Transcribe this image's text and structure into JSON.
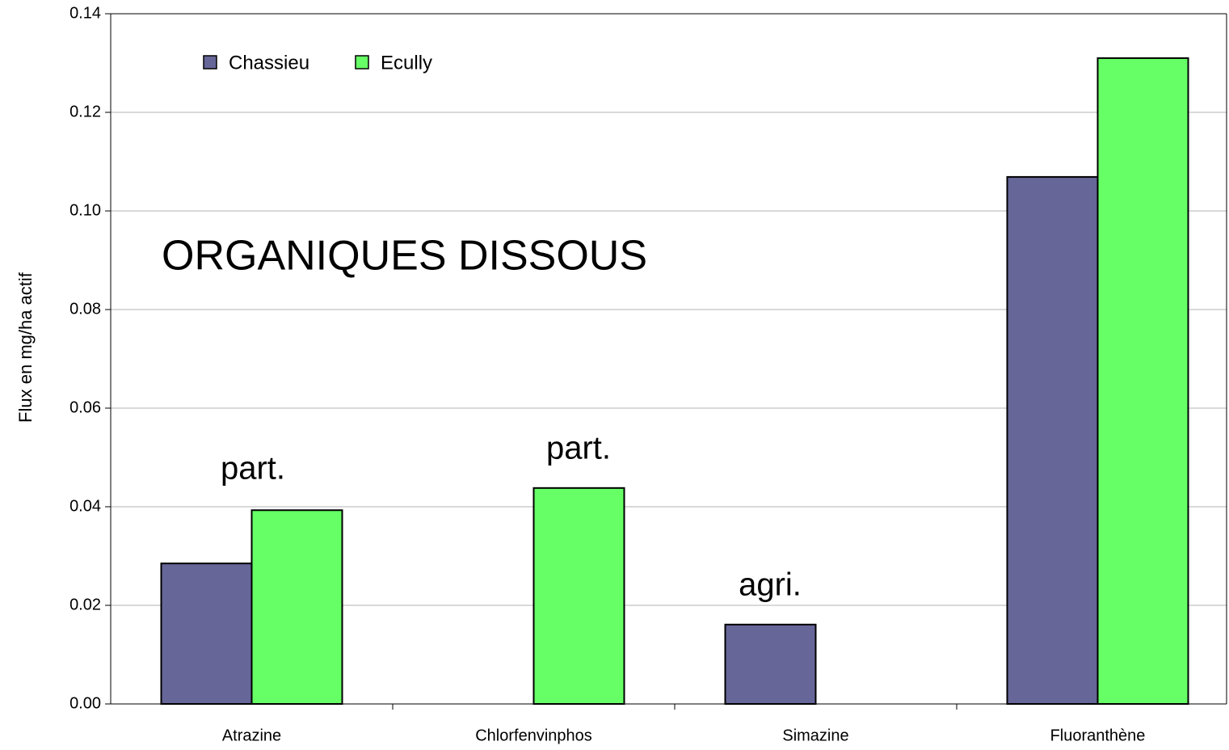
{
  "chart_data": {
    "type": "bar",
    "title": "ORGANIQUES DISSOUS",
    "y_label": "Flux en mg/ha actif",
    "categories": [
      "Atrazine",
      "Chlorfenvinphos",
      "Simazine",
      "Fluoranthène"
    ],
    "series": [
      {
        "name": "Chassieu",
        "color": "#666699",
        "values": [
          0.0285,
          null,
          0.0161,
          0.1069
        ]
      },
      {
        "name": "Ecully",
        "color": "#66ff66",
        "values": [
          0.0393,
          0.0438,
          null,
          0.131
        ]
      }
    ],
    "annotations": [
      "part.",
      "part.",
      "agri."
    ],
    "ylim": [
      0,
      0.14
    ],
    "yticks": [
      {
        "value": 0,
        "label": "0.00"
      },
      0.02,
      0.04,
      0.06,
      0.08,
      {
        "value": 0.1,
        "label": "0.10"
      },
      0.12,
      0.14
    ],
    "grid": true,
    "legend": "top-left"
  }
}
